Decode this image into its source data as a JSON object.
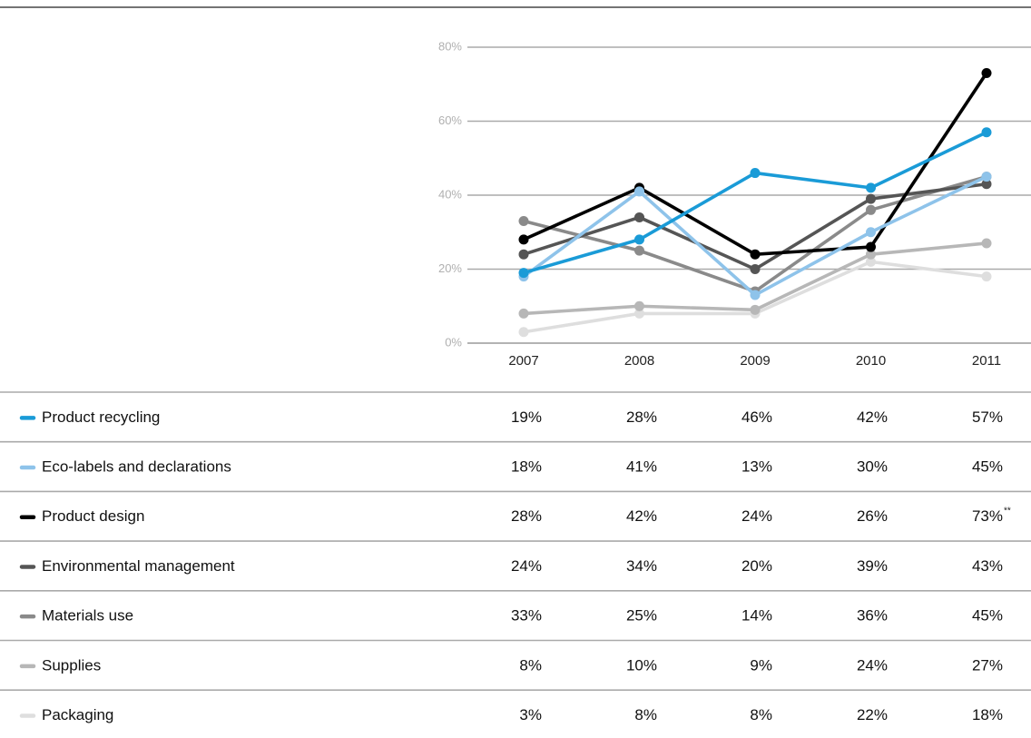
{
  "chart_data": {
    "type": "line",
    "categories": [
      "2007",
      "2008",
      "2009",
      "2010",
      "2011"
    ],
    "ylim": [
      0,
      80
    ],
    "yticks": [
      {
        "value": 0,
        "label": "0%"
      },
      {
        "value": 20,
        "label": "20%"
      },
      {
        "value": 40,
        "label": "40%"
      },
      {
        "value": 60,
        "label": "60%"
      },
      {
        "value": 80,
        "label": "80%"
      }
    ],
    "grid": true,
    "series": [
      {
        "name": "Product recycling",
        "color": "#1a9bd7",
        "values": [
          19,
          28,
          46,
          42,
          57
        ],
        "value_labels": [
          "19%",
          "28%",
          "46%",
          "42%",
          "57%"
        ]
      },
      {
        "name": "Eco-labels and declarations",
        "color": "#8ec3ea",
        "values": [
          18,
          41,
          13,
          30,
          45
        ],
        "value_labels": [
          "18%",
          "41%",
          "13%",
          "30%",
          "45%"
        ]
      },
      {
        "name": "Product design",
        "color": "#000000",
        "values": [
          28,
          42,
          24,
          26,
          73
        ],
        "value_labels": [
          "28%",
          "42%",
          "24%",
          "26%",
          "73%"
        ],
        "annotation": "**"
      },
      {
        "name": "Environmental management",
        "color": "#555555",
        "values": [
          24,
          34,
          20,
          39,
          43
        ],
        "value_labels": [
          "24%",
          "34%",
          "20%",
          "39%",
          "43%"
        ]
      },
      {
        "name": "Materials use",
        "color": "#8a8a8a",
        "values": [
          33,
          25,
          14,
          36,
          45
        ],
        "value_labels": [
          "33%",
          "25%",
          "14%",
          "36%",
          "45%"
        ]
      },
      {
        "name": "Supplies",
        "color": "#b7b7b7",
        "values": [
          8,
          10,
          9,
          24,
          27
        ],
        "value_labels": [
          "8%",
          "10%",
          "9%",
          "24%",
          "27%"
        ]
      },
      {
        "name": "Packaging",
        "color": "#dedede",
        "values": [
          3,
          8,
          8,
          22,
          18
        ],
        "value_labels": [
          "3%",
          "8%",
          "8%",
          "22%",
          "18%"
        ]
      }
    ]
  }
}
